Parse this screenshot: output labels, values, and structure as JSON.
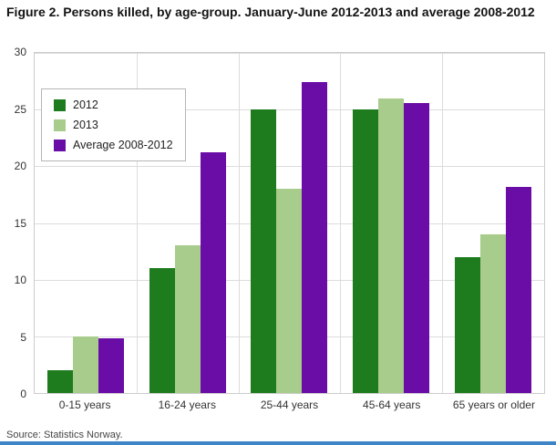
{
  "page": {
    "title": "Figure 2. Persons killed, by age-group. January-June 2012-2013 and average 2008-2012",
    "source": "Source: Statistics Norway."
  },
  "colors": {
    "series_2012": "#1e7c1e",
    "series_2013": "#a8cc8b",
    "series_average": "#6a0da6",
    "bottom_bar": "#3d85c6",
    "gridline": "#dcdcdc",
    "plot_border": "#cccccc"
  },
  "chart_data": {
    "type": "bar",
    "title": "Figure 2. Persons killed, by age-group. January-June 2012-2013 and average 2008-2012",
    "categories": [
      "0-15 years",
      "16-24 years",
      "25-44 years",
      "45-64 years",
      "65 years or older"
    ],
    "series": [
      {
        "name": "2012",
        "color": "#1e7c1e",
        "values": [
          2,
          11,
          25,
          25,
          12
        ]
      },
      {
        "name": "2013",
        "color": "#a8cc8b",
        "values": [
          5,
          13,
          18,
          26,
          14
        ]
      },
      {
        "name": "Average 2008-2012",
        "color": "#6a0da6",
        "values": [
          4.8,
          21.2,
          27.4,
          25.6,
          18.2
        ]
      }
    ],
    "ylim": [
      0,
      30
    ],
    "yticks": [
      0,
      5,
      10,
      15,
      20,
      25,
      30
    ],
    "grid": true,
    "legend_position": "top-left",
    "xlabel": "",
    "ylabel": ""
  }
}
